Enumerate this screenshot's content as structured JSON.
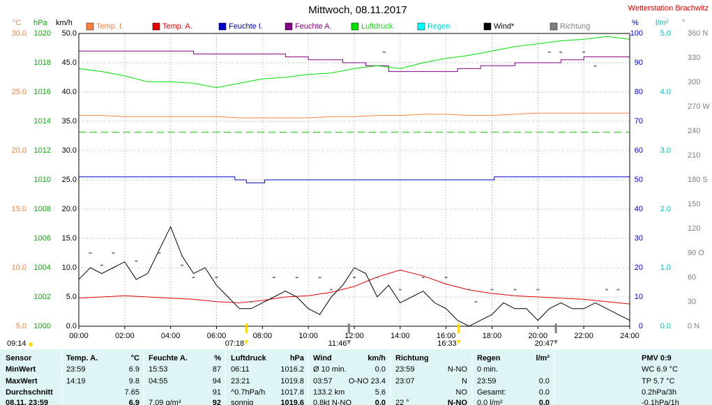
{
  "chart_data": {
    "type": "line",
    "title": "Mittwoch, 08.11.2017",
    "station": "Wetterstation Brachwitz",
    "xlim": [
      0,
      24
    ],
    "xticks": [
      {
        "value": 0,
        "label": "00:00"
      },
      {
        "value": 2,
        "label": "02:00"
      },
      {
        "value": 4,
        "label": "04:00"
      },
      {
        "value": 6,
        "label": "06:00"
      },
      {
        "value": 8,
        "label": "08:00"
      },
      {
        "value": 10,
        "label": "10:00"
      },
      {
        "value": 12,
        "label": "12:00"
      },
      {
        "value": 14,
        "label": "14:00"
      },
      {
        "value": 16,
        "label": "16:00"
      },
      {
        "value": 18,
        "label": "18:00"
      },
      {
        "value": 20,
        "label": "20:00"
      },
      {
        "value": 22,
        "label": "22:00"
      },
      {
        "value": 24,
        "label": "24:00"
      }
    ],
    "grid": true,
    "y_axes": [
      {
        "unit": "°C",
        "color": "#ff8040",
        "side": "left",
        "lim": [
          5,
          30
        ],
        "ticks": [
          {
            "value": 30,
            "label": "30.0"
          },
          {
            "value": 25,
            "label": "25.0"
          },
          {
            "value": 20,
            "label": "20.0"
          },
          {
            "value": 15,
            "label": "15.0"
          },
          {
            "value": 10,
            "label": "10.0"
          },
          {
            "value": 5,
            "label": "5.0"
          }
        ]
      },
      {
        "unit": "hPa",
        "color": "#00b000",
        "side": "left",
        "lim": [
          1000,
          1020
        ],
        "ticks": [
          1020,
          1018,
          1016,
          1014,
          1012,
          1010,
          1008,
          1006,
          1004,
          1002,
          1000
        ]
      },
      {
        "unit": "km/h",
        "color": "#000000",
        "side": "left",
        "lim": [
          0,
          50
        ],
        "ticks": [
          {
            "value": 50,
            "label": "50.0"
          },
          {
            "value": 45,
            "label": "45.0"
          },
          {
            "value": 40,
            "label": "40.0"
          },
          {
            "value": 35,
            "label": "35.0"
          },
          {
            "value": 30,
            "label": "30.0"
          },
          {
            "value": 25,
            "label": "25.0"
          },
          {
            "value": 20,
            "label": "20.0"
          },
          {
            "value": 15,
            "label": "15.0"
          },
          {
            "value": 10,
            "label": "10.0"
          },
          {
            "value": 5,
            "label": "5.0"
          },
          {
            "value": 0,
            "label": "0.0"
          }
        ]
      },
      {
        "unit": "%",
        "color": "#0000c0",
        "side": "right",
        "lim": [
          0,
          100
        ],
        "ticks": [
          100,
          90,
          80,
          70,
          60,
          50,
          40,
          30,
          20,
          10,
          0
        ]
      },
      {
        "unit": "l/m²",
        "color": "#00c0c0",
        "side": "right",
        "lim": [
          0,
          5
        ],
        "ticks": [
          {
            "value": 5,
            "label": "5.0"
          },
          {
            "value": 4,
            "label": "4.0"
          },
          {
            "value": 3,
            "label": "3.0"
          },
          {
            "value": 2,
            "label": "2.0"
          },
          {
            "value": 1,
            "label": "1.0"
          },
          {
            "value": 0,
            "label": "0.0"
          }
        ]
      },
      {
        "unit": "°",
        "color": "#808080",
        "side": "right",
        "lim": [
          0,
          360
        ],
        "ticks": [
          {
            "value": 360,
            "label": "360 N"
          },
          330,
          300,
          {
            "value": 270,
            "label": "270 W"
          },
          240,
          210,
          {
            "value": 180,
            "label": "180 S"
          },
          150,
          120,
          {
            "value": 90,
            "label": "90 O"
          },
          60,
          30,
          {
            "value": 0,
            "label": "0 N"
          }
        ]
      }
    ],
    "series": [
      {
        "name": "Temp. I.",
        "color": "#ff8040",
        "axis": 0,
        "style": "line",
        "x": [
          0,
          1,
          2,
          3,
          4,
          5,
          6,
          7,
          8,
          9,
          10,
          11,
          12,
          13,
          14,
          15,
          16,
          17,
          18,
          19,
          20,
          21,
          22,
          23,
          24
        ],
        "values": [
          23.0,
          23.0,
          22.9,
          22.9,
          22.9,
          22.9,
          22.9,
          22.8,
          22.8,
          22.8,
          22.8,
          22.9,
          22.9,
          23.0,
          23.0,
          23.1,
          23.1,
          23.0,
          23.0,
          23.1,
          23.2,
          23.2,
          23.2,
          23.2,
          23.2
        ]
      },
      {
        "name": "Temp. A.",
        "color": "#e00000",
        "axis": 0,
        "style": "line",
        "x": [
          0,
          1,
          2,
          3,
          4,
          5,
          6,
          7,
          8,
          9,
          10,
          11,
          12,
          13,
          14,
          15,
          16,
          17,
          18,
          19,
          20,
          21,
          22,
          23,
          24
        ],
        "values": [
          7.4,
          7.5,
          7.6,
          7.5,
          7.4,
          7.3,
          7.1,
          7.0,
          7.2,
          7.5,
          7.6,
          7.9,
          8.4,
          9.2,
          9.8,
          9.3,
          8.6,
          8.1,
          7.8,
          7.6,
          7.5,
          7.4,
          7.3,
          7.1,
          6.9
        ]
      },
      {
        "name": "Feuchte I.",
        "color": "#0000c0",
        "axis": 3,
        "style": "line",
        "x": [
          0,
          6.8,
          6.8,
          7.3,
          7.3,
          8.1,
          8.1,
          18.1,
          18.1,
          24
        ],
        "values": [
          51,
          51,
          50,
          50,
          49,
          49,
          50,
          50,
          51,
          51
        ]
      },
      {
        "name": "Feuchte A.",
        "color": "#800080",
        "axis": 3,
        "style": "line",
        "x": [
          0,
          5,
          5,
          7,
          7,
          9,
          9,
          10,
          10,
          11.5,
          11.5,
          12.5,
          12.5,
          13.5,
          13.5,
          16.5,
          16.5,
          17.5,
          17.5,
          19,
          19,
          21,
          21,
          22,
          22,
          24
        ],
        "values": [
          94,
          94,
          93,
          93,
          93,
          93,
          92,
          92,
          91,
          91,
          90,
          90,
          89,
          89,
          87,
          87,
          88,
          88,
          89,
          89,
          90,
          90,
          91,
          91,
          92,
          92
        ]
      },
      {
        "name": "Luftdruck",
        "color": "#00e000",
        "axis": 1,
        "style": "line",
        "x": [
          0,
          1,
          2,
          3,
          4,
          5,
          6,
          7,
          8,
          9,
          10,
          11,
          12,
          13,
          14,
          15,
          16,
          17,
          18,
          19,
          20,
          21,
          22,
          23,
          24
        ],
        "values": [
          1017.6,
          1017.4,
          1017.1,
          1016.7,
          1016.7,
          1016.6,
          1016.3,
          1016.6,
          1016.9,
          1017.0,
          1017.2,
          1017.3,
          1017.6,
          1017.8,
          1017.6,
          1018.0,
          1018.3,
          1018.5,
          1018.8,
          1019.1,
          1019.3,
          1019.5,
          1019.6,
          1019.8,
          1019.6
        ]
      },
      {
        "name": "Regen",
        "color": "#00ffff",
        "axis": 4,
        "style": "line",
        "x": [
          0,
          24
        ],
        "values": [
          0,
          0
        ]
      },
      {
        "name": "Wind*",
        "color": "#000000",
        "axis": 2,
        "style": "line",
        "x": [
          0,
          0.5,
          1,
          1.5,
          2,
          2.5,
          3,
          3.5,
          4,
          4.5,
          5,
          5.5,
          6,
          6.5,
          7,
          7.5,
          8,
          8.5,
          9,
          9.5,
          10,
          10.5,
          11,
          11.5,
          12,
          12.5,
          13,
          13.5,
          14,
          14.5,
          15,
          15.5,
          16,
          16.5,
          17,
          17.5,
          18,
          18.5,
          19,
          19.5,
          20,
          20.5,
          21,
          21.5,
          22,
          22.5,
          23,
          23.5,
          24
        ],
        "values": [
          8,
          10,
          9,
          10,
          11,
          8,
          9,
          13,
          17,
          12,
          9,
          10,
          7,
          5,
          3,
          3,
          4,
          5,
          6,
          5,
          3,
          2,
          5,
          7,
          10,
          9,
          5,
          7,
          4,
          5,
          6,
          4,
          3,
          1,
          0,
          1,
          2,
          4,
          3,
          3,
          1,
          3,
          4,
          3,
          3,
          4,
          3,
          2,
          1
        ]
      },
      {
        "name": "Richtung",
        "color": "#808080",
        "axis": 5,
        "style": "dots",
        "x": [
          0.5,
          1,
          1.5,
          2.5,
          3.5,
          4.5,
          5,
          6,
          7.5,
          8.5,
          9.5,
          10.5,
          11,
          12,
          13,
          13.3,
          14,
          15,
          16,
          17,
          17.3,
          18,
          19,
          20,
          20.5,
          21,
          22,
          22.5,
          23,
          23.5
        ],
        "values": [
          90,
          75,
          90,
          80,
          90,
          75,
          60,
          60,
          30,
          60,
          60,
          60,
          45,
          60,
          60,
          337,
          45,
          60,
          60,
          45,
          30,
          45,
          45,
          45,
          337,
          337,
          337,
          320,
          45,
          45
        ]
      }
    ],
    "pressure_reference": {
      "axis": 1,
      "value": 1013.25,
      "color": "#00c000"
    },
    "day_length": "09:14",
    "sun_markers": [
      {
        "time": 7.3,
        "label": "07:18",
        "color": "#ffd800"
      },
      {
        "time": 11.767,
        "label": "11:46",
        "color": "#808080"
      },
      {
        "time": 16.55,
        "label": "16:33",
        "color": "#ffd800"
      },
      {
        "time": 20.783,
        "label": "20:47",
        "color": "#808080"
      }
    ]
  },
  "table": {
    "rows": [
      [
        "Sensor",
        "Temp. A.",
        "°C",
        "Feuchte A.",
        "%",
        "Luftdruck",
        "hPa",
        "Wind",
        "km/h",
        "Richtung",
        null,
        "Regen",
        "l/m²",
        "PMV 0:9"
      ],
      [
        "MinWert",
        "23:59",
        "6.9",
        "15:53",
        "87",
        "06:11",
        "1016.2",
        "Ø 10 min.",
        "0.0",
        "23:59",
        "N-NO",
        "0 min.",
        null,
        "WC 6.9 °C"
      ],
      [
        "MaxWert",
        "14:19",
        "9.8",
        "04:55",
        "94",
        "23:21",
        "1019.8",
        "03:57",
        "O-NO 23.4",
        "23:07",
        "N",
        "23:59",
        "0.0",
        "TP 5.7 °C"
      ],
      [
        "Durchschnitt",
        null,
        "7.65",
        null,
        "91",
        "^0.7hPa/h",
        "1017.8",
        "133.2 km",
        "5.6",
        null,
        "NO",
        "Gesamt:",
        "0.0",
        "0.2hPa/3h"
      ],
      [
        "08.11. 23:59",
        null,
        "6.9",
        "7.09 g/m³",
        "92",
        "sonnig",
        "1019.6",
        "0.8kt N-NO",
        "0.0",
        "22 °",
        "N-NO",
        "0.0 l/m²",
        "0.0",
        "-0.1hPa/1h"
      ]
    ]
  }
}
